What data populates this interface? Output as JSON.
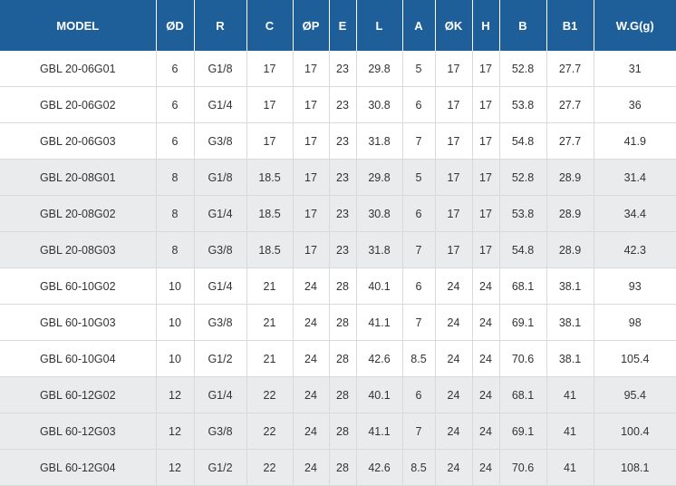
{
  "table": {
    "headers": [
      "MODEL",
      "ØD",
      "R",
      "C",
      "ØP",
      "E",
      "L",
      "A",
      "ØK",
      "H",
      "B",
      "B1",
      "W.G(g)"
    ],
    "rows": [
      [
        "GBL 20-06G01",
        "6",
        "G1/8",
        "17",
        "17",
        "23",
        "29.8",
        "5",
        "17",
        "17",
        "52.8",
        "27.7",
        "31"
      ],
      [
        "GBL 20-06G02",
        "6",
        "G1/4",
        "17",
        "17",
        "23",
        "30.8",
        "6",
        "17",
        "17",
        "53.8",
        "27.7",
        "36"
      ],
      [
        "GBL 20-06G03",
        "6",
        "G3/8",
        "17",
        "17",
        "23",
        "31.8",
        "7",
        "17",
        "17",
        "54.8",
        "27.7",
        "41.9"
      ],
      [
        "GBL 20-08G01",
        "8",
        "G1/8",
        "18.5",
        "17",
        "23",
        "29.8",
        "5",
        "17",
        "17",
        "52.8",
        "28.9",
        "31.4"
      ],
      [
        "GBL 20-08G02",
        "8",
        "G1/4",
        "18.5",
        "17",
        "23",
        "30.8",
        "6",
        "17",
        "17",
        "53.8",
        "28.9",
        "34.4"
      ],
      [
        "GBL 20-08G03",
        "8",
        "G3/8",
        "18.5",
        "17",
        "23",
        "31.8",
        "7",
        "17",
        "17",
        "54.8",
        "28.9",
        "42.3"
      ],
      [
        "GBL 60-10G02",
        "10",
        "G1/4",
        "21",
        "24",
        "28",
        "40.1",
        "6",
        "24",
        "24",
        "68.1",
        "38.1",
        "93"
      ],
      [
        "GBL 60-10G03",
        "10",
        "G3/8",
        "21",
        "24",
        "28",
        "41.1",
        "7",
        "24",
        "24",
        "69.1",
        "38.1",
        "98"
      ],
      [
        "GBL 60-10G04",
        "10",
        "G1/2",
        "21",
        "24",
        "28",
        "42.6",
        "8.5",
        "24",
        "24",
        "70.6",
        "38.1",
        "105.4"
      ],
      [
        "GBL 60-12G02",
        "12",
        "G1/4",
        "22",
        "24",
        "28",
        "40.1",
        "6",
        "24",
        "24",
        "68.1",
        "41",
        "95.4"
      ],
      [
        "GBL 60-12G03",
        "12",
        "G3/8",
        "22",
        "24",
        "28",
        "41.1",
        "7",
        "24",
        "24",
        "69.1",
        "41",
        "100.4"
      ],
      [
        "GBL 60-12G04",
        "12",
        "G1/2",
        "22",
        "24",
        "28",
        "42.6",
        "8.5",
        "24",
        "24",
        "70.6",
        "41",
        "108.1"
      ]
    ],
    "row_shading": [
      "plain",
      "plain",
      "plain",
      "shade",
      "shade",
      "shade",
      "plain",
      "plain",
      "plain",
      "shade",
      "shade",
      "shade"
    ]
  },
  "colors": {
    "header_bg": "#1f5f99",
    "header_text": "#ffffff",
    "shaded_row": "#eaebec",
    "plain_row": "#ffffff",
    "cell_text": "#333333"
  }
}
